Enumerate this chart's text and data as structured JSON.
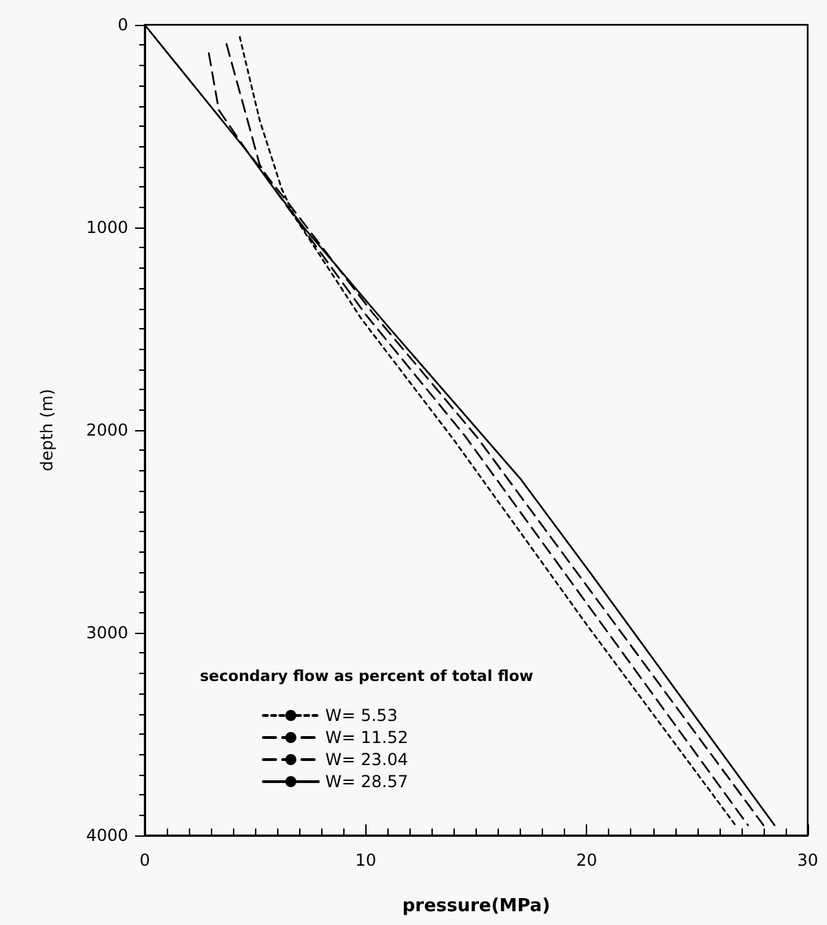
{
  "chart_data": {
    "type": "line",
    "xlabel": "pressure(MPa)",
    "ylabel": "depth (m)",
    "legend_title": "secondary flow as percent of total flow",
    "legend": "bottom left",
    "grid": false,
    "marker": "none",
    "xlim": [
      0,
      30
    ],
    "xticks": [
      0,
      10,
      20,
      30
    ],
    "ylim": [
      4000,
      0
    ],
    "yticks": [
      0,
      1000,
      2000,
      3000,
      4000
    ],
    "series": [
      {
        "name": "W= 5.53",
        "color": "#000000",
        "line_style": "dotted",
        "x": [
          4.3,
          5.2,
          6.2,
          6.8,
          9.8,
          14,
          20,
          26.7
        ],
        "values": [
          60,
          470,
          810,
          950,
          1450,
          2050,
          2960,
          3945
        ]
      },
      {
        "name": "W= 11.52",
        "color": "#000000",
        "line_style": "dashed",
        "x": [
          3.7,
          4.75,
          5.2,
          6.0,
          10.0,
          14.5,
          20.7,
          27.3
        ],
        "values": [
          95,
          510,
          690,
          830,
          1430,
          2030,
          2960,
          3950
        ]
      },
      {
        "name": "W= 23.04",
        "color": "#000000",
        "line_style": "dashed",
        "x": [
          2.9,
          3.35,
          4.6,
          6.5,
          10.3,
          15,
          21.3,
          28.0
        ],
        "values": [
          140,
          420,
          620,
          880,
          1420,
          2030,
          2960,
          3950
        ]
      },
      {
        "name": "W= 28.57",
        "color": "#000000",
        "line_style": "solid",
        "x": [
          0,
          4.6,
          5.8,
          7.2,
          11.1,
          17,
          20.2,
          28.5
        ],
        "values": [
          0,
          620,
          800,
          1000,
          1500,
          2240,
          2710,
          3950
        ]
      }
    ]
  }
}
